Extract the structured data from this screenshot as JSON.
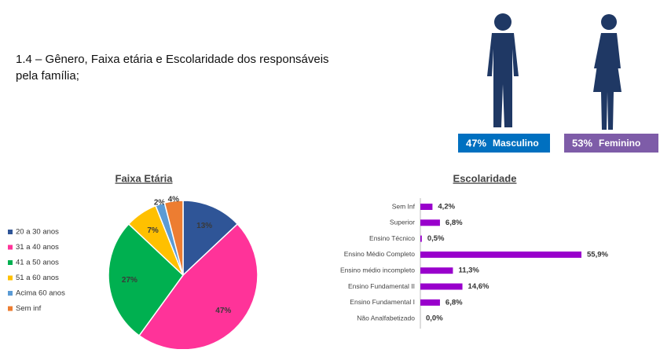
{
  "heading": "1.4 – Gênero, Faixa etária e Escolaridade dos responsáveis pela família;",
  "gender": [
    {
      "value": 47,
      "value_label": "47%",
      "label": "Masculino",
      "color": "#0070c0"
    },
    {
      "value": 53,
      "value_label": "53%",
      "label": "Feminino",
      "color": "#7e5ca8"
    }
  ],
  "chart_data": [
    {
      "type": "pie",
      "title": "Faixa Etária",
      "categories": [
        "20 a 30 anos",
        "31 a 40 anos",
        "41 a 50 anos",
        "51 a 60 anos",
        "Acima 60 anos",
        "Sem inf"
      ],
      "values": [
        13,
        47,
        27,
        7,
        2,
        4
      ],
      "value_labels": [
        "13%",
        "47%",
        "27%",
        "7%",
        "2%",
        "4%"
      ],
      "colors": [
        "#2f5597",
        "#ff3399",
        "#00b050",
        "#ffc000",
        "#5b9bd5",
        "#ed7d31"
      ]
    },
    {
      "type": "hbar",
      "title": "Escolaridade",
      "categories": [
        "Sem Inf",
        "Superior",
        "Ensino Técnico",
        "Ensino Médio Completo",
        "Ensino médio incompleto",
        "Ensino Fundamental II",
        "Ensino Fundamental I",
        "Não Analfabetizado"
      ],
      "values": [
        4.2,
        6.8,
        0.5,
        55.9,
        11.3,
        14.6,
        6.8,
        0.0
      ],
      "value_labels": [
        "4,2%",
        "6,8%",
        "0,5%",
        "55,9%",
        "11,3%",
        "14,6%",
        "6,8%",
        "0,0%"
      ],
      "color": "#9900cc"
    }
  ]
}
